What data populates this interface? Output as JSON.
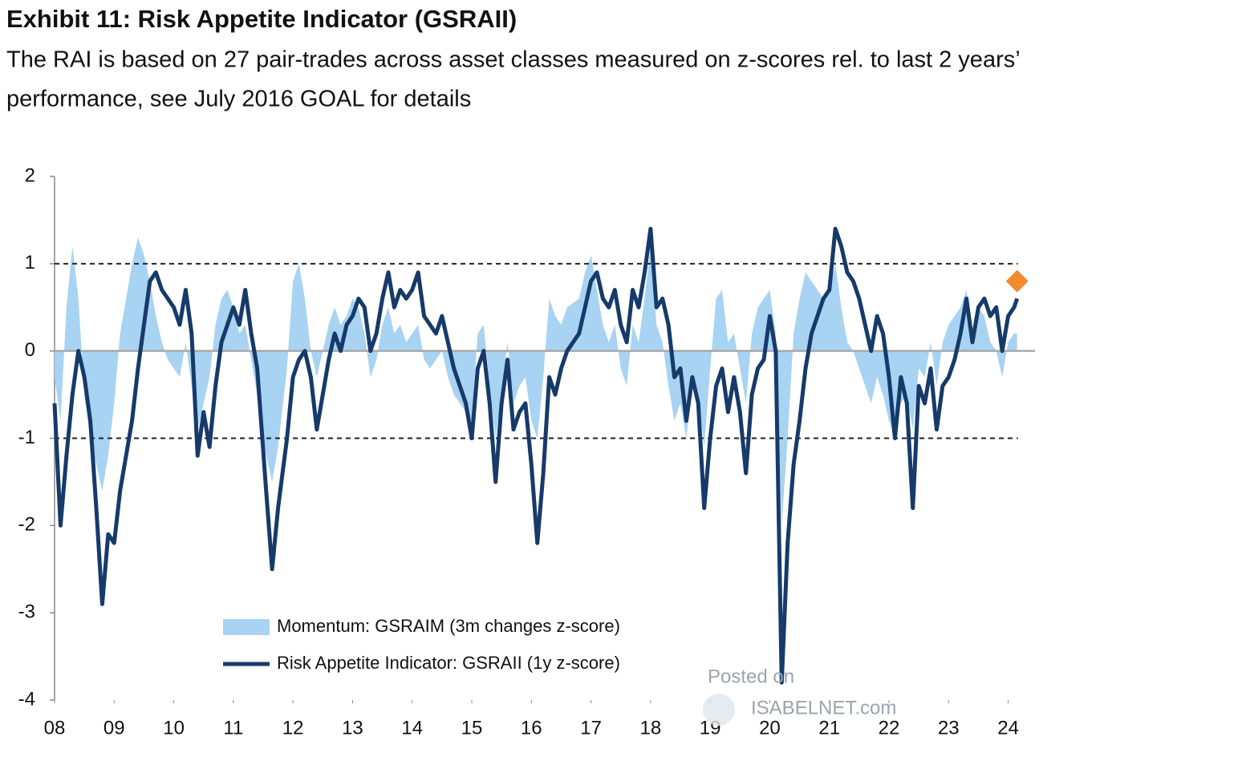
{
  "chart_data": {
    "type": "line-area",
    "title": "Exhibit 11: Risk Appetite Indicator (GSRAII)",
    "subtitle": [
      "The RAI is based on 27 pair-trades across asset classes measured on z-scores rel. to last 2 years’",
      "performance, see July 2016 GOAL for details"
    ],
    "watermark": [
      "Posted on",
      "ISABELNET.com"
    ],
    "x": [
      2008.0,
      2008.1,
      2008.2,
      2008.3,
      2008.4,
      2008.5,
      2008.6,
      2008.7,
      2008.8,
      2008.9,
      2009.0,
      2009.1,
      2009.2,
      2009.3,
      2009.4,
      2009.5,
      2009.6,
      2009.7,
      2009.8,
      2009.9,
      2010.0,
      2010.1,
      2010.2,
      2010.3,
      2010.4,
      2010.5,
      2010.6,
      2010.7,
      2010.8,
      2010.9,
      2011.0,
      2011.1,
      2011.2,
      2011.3,
      2011.4,
      2011.55,
      2011.65,
      2011.75,
      2011.9,
      2012.0,
      2012.1,
      2012.2,
      2012.3,
      2012.4,
      2012.5,
      2012.6,
      2012.7,
      2012.8,
      2012.9,
      2013.0,
      2013.1,
      2013.2,
      2013.3,
      2013.4,
      2013.5,
      2013.6,
      2013.7,
      2013.8,
      2013.9,
      2014.0,
      2014.1,
      2014.2,
      2014.3,
      2014.4,
      2014.5,
      2014.6,
      2014.7,
      2014.8,
      2014.9,
      2015.0,
      2015.1,
      2015.2,
      2015.3,
      2015.4,
      2015.5,
      2015.6,
      2015.7,
      2015.8,
      2015.9,
      2016.0,
      2016.1,
      2016.2,
      2016.3,
      2016.4,
      2016.5,
      2016.6,
      2016.8,
      2016.9,
      2017.0,
      2017.1,
      2017.2,
      2017.3,
      2017.4,
      2017.5,
      2017.6,
      2017.7,
      2017.8,
      2017.9,
      2018.0,
      2018.1,
      2018.2,
      2018.3,
      2018.4,
      2018.5,
      2018.6,
      2018.7,
      2018.8,
      2018.9,
      2019.0,
      2019.1,
      2019.2,
      2019.3,
      2019.4,
      2019.5,
      2019.6,
      2019.7,
      2019.8,
      2019.9,
      2020.0,
      2020.1,
      2020.2,
      2020.3,
      2020.4,
      2020.5,
      2020.6,
      2020.7,
      2020.8,
      2020.9,
      2021.0,
      2021.1,
      2021.2,
      2021.3,
      2021.4,
      2021.5,
      2021.6,
      2021.7,
      2021.8,
      2021.9,
      2022.0,
      2022.1,
      2022.2,
      2022.3,
      2022.4,
      2022.5,
      2022.6,
      2022.7,
      2022.8,
      2022.9,
      2023.0,
      2023.1,
      2023.2,
      2023.3,
      2023.4,
      2023.5,
      2023.6,
      2023.7,
      2023.8,
      2023.9,
      2024.0,
      2024.1,
      2024.15
    ],
    "series": [
      {
        "name": "Momentum: GSRAIM (3m changes z-score)",
        "kind": "area",
        "color": "#a8d3f3",
        "values": [
          -0.3,
          -0.8,
          0.5,
          1.2,
          0.6,
          -0.5,
          -1.0,
          -1.3,
          -1.6,
          -1.2,
          -0.6,
          0.2,
          0.6,
          1.0,
          1.3,
          1.1,
          0.8,
          0.4,
          0.1,
          -0.1,
          -0.2,
          -0.3,
          0.1,
          -0.4,
          -0.9,
          -0.6,
          -0.3,
          0.3,
          0.6,
          0.7,
          0.5,
          0.2,
          0.3,
          -0.1,
          -0.5,
          -1.2,
          -1.5,
          -1.1,
          -0.2,
          0.8,
          1.0,
          0.6,
          0.0,
          -0.3,
          0.0,
          0.3,
          0.5,
          0.3,
          0.4,
          0.6,
          0.5,
          0.2,
          -0.3,
          -0.1,
          0.3,
          0.5,
          0.2,
          0.3,
          0.1,
          0.2,
          0.3,
          -0.1,
          -0.2,
          -0.1,
          0.0,
          -0.3,
          -0.5,
          -0.6,
          -0.7,
          -0.8,
          0.2,
          0.3,
          -0.4,
          -1.0,
          -0.5,
          0.1,
          -0.6,
          -0.4,
          -0.3,
          -0.8,
          -1.0,
          -0.3,
          0.6,
          0.4,
          0.3,
          0.5,
          0.6,
          0.9,
          1.1,
          0.7,
          0.3,
          0.1,
          0.3,
          -0.2,
          -0.4,
          0.3,
          0.1,
          0.6,
          1.2,
          0.3,
          0.1,
          -0.4,
          -0.8,
          -0.6,
          -1.0,
          -0.4,
          -0.5,
          -1.1,
          -0.2,
          0.6,
          0.7,
          0.1,
          0.2,
          -0.2,
          -0.6,
          0.2,
          0.5,
          0.6,
          0.7,
          0.2,
          -2.0,
          -1.0,
          0.2,
          0.6,
          0.9,
          0.8,
          0.7,
          0.6,
          0.7,
          1.0,
          0.5,
          0.1,
          0.0,
          -0.2,
          -0.4,
          -0.6,
          -0.3,
          -0.5,
          -0.8,
          -1.0,
          -0.6,
          -0.5,
          -0.9,
          -0.2,
          -0.3,
          0.1,
          -0.4,
          0.1,
          0.3,
          0.4,
          0.5,
          0.7,
          0.2,
          0.5,
          0.4,
          0.1,
          0.0,
          -0.3,
          0.1,
          0.2,
          0.2
        ]
      },
      {
        "name": "Risk Appetite Indicator: GSRAII (1y z-score)",
        "kind": "line",
        "color": "#163a6a",
        "values": [
          -0.6,
          -2.0,
          -1.2,
          -0.5,
          0.0,
          -0.3,
          -0.8,
          -1.8,
          -2.9,
          -2.1,
          -2.2,
          -1.6,
          -1.2,
          -0.8,
          -0.2,
          0.3,
          0.8,
          0.9,
          0.7,
          0.6,
          0.5,
          0.3,
          0.7,
          0.2,
          -1.2,
          -0.7,
          -1.1,
          -0.4,
          0.1,
          0.3,
          0.5,
          0.3,
          0.7,
          0.2,
          -0.2,
          -1.6,
          -2.5,
          -1.8,
          -1.0,
          -0.3,
          -0.1,
          0.0,
          -0.3,
          -0.9,
          -0.5,
          -0.1,
          0.2,
          0.0,
          0.3,
          0.4,
          0.6,
          0.5,
          0.0,
          0.2,
          0.6,
          0.9,
          0.5,
          0.7,
          0.6,
          0.7,
          0.9,
          0.4,
          0.3,
          0.2,
          0.4,
          0.1,
          -0.2,
          -0.4,
          -0.6,
          -1.0,
          -0.2,
          0.0,
          -0.6,
          -1.5,
          -0.6,
          -0.1,
          -0.9,
          -0.7,
          -0.6,
          -1.3,
          -2.2,
          -1.4,
          -0.3,
          -0.5,
          -0.2,
          0.0,
          0.2,
          0.5,
          0.8,
          0.9,
          0.6,
          0.5,
          0.7,
          0.3,
          0.1,
          0.7,
          0.5,
          0.9,
          1.4,
          0.5,
          0.6,
          0.3,
          -0.3,
          -0.2,
          -0.8,
          -0.3,
          -0.6,
          -1.8,
          -1.0,
          -0.4,
          -0.2,
          -0.7,
          -0.3,
          -0.7,
          -1.4,
          -0.5,
          -0.2,
          -0.1,
          0.4,
          0.0,
          -3.8,
          -2.2,
          -1.3,
          -0.8,
          -0.2,
          0.2,
          0.4,
          0.6,
          0.7,
          1.4,
          1.2,
          0.9,
          0.8,
          0.6,
          0.3,
          0.0,
          0.4,
          0.2,
          -0.3,
          -1.0,
          -0.3,
          -0.6,
          -1.8,
          -0.4,
          -0.6,
          -0.2,
          -0.9,
          -0.4,
          -0.3,
          -0.1,
          0.2,
          0.6,
          0.1,
          0.5,
          0.6,
          0.4,
          0.5,
          0.0,
          0.4,
          0.5,
          0.6
        ]
      }
    ],
    "marker": {
      "x": 2024.15,
      "y": 0.8,
      "color": "#f28a2e"
    },
    "hlines": [
      1,
      -1
    ],
    "ylim": [
      -4,
      2
    ],
    "yticks": [
      -4,
      -3,
      -2,
      -1,
      0,
      1,
      2
    ],
    "xlim": [
      2008,
      2024.45
    ],
    "xticks": [
      {
        "value": 2008,
        "label": "08"
      },
      {
        "value": 2009,
        "label": "09"
      },
      {
        "value": 2010,
        "label": "10"
      },
      {
        "value": 2011,
        "label": "11"
      },
      {
        "value": 2012,
        "label": "12"
      },
      {
        "value": 2013,
        "label": "13"
      },
      {
        "value": 2014,
        "label": "14"
      },
      {
        "value": 2015,
        "label": "15"
      },
      {
        "value": 2016,
        "label": "16"
      },
      {
        "value": 2017,
        "label": "17"
      },
      {
        "value": 2018,
        "label": "18"
      },
      {
        "value": 2019,
        "label": "19"
      },
      {
        "value": 2020,
        "label": "20"
      },
      {
        "value": 2021,
        "label": "21"
      },
      {
        "value": 2022,
        "label": "22"
      },
      {
        "value": 2023,
        "label": "23"
      },
      {
        "value": 2024,
        "label": "24"
      }
    ],
    "legend": "lower-left"
  }
}
